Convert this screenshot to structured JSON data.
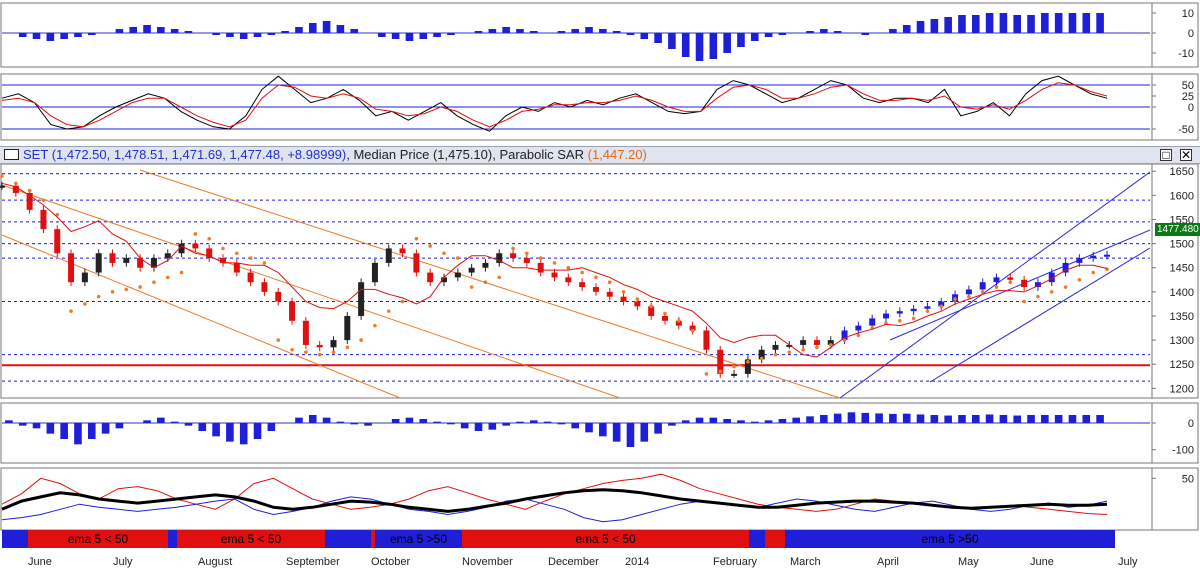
{
  "title_bar": {
    "symbol": "SET",
    "ohlc": "(1,472.50, 1,478.51, 1,471.69, 1,477.48, +8.98999)",
    "median_label": ", Median Price (1,475.10), ",
    "sar_label": "Parabolic SAR",
    "sar_value": "(1,447.20)",
    "maximize_glyph": "□",
    "close_glyph": "✕"
  },
  "last_price_tag": "1477.480",
  "colors": {
    "blue": "#1f1fd8",
    "red": "#e01010",
    "orange": "#f07a28",
    "black": "#000000",
    "green": "#0a7a18"
  },
  "chart_data": [
    {
      "type": "bar",
      "name": "top-oscillator",
      "y_ticks": [
        "10",
        "0",
        "-10"
      ],
      "ylim": [
        -17,
        15
      ],
      "values": [
        0,
        -2,
        -3,
        -4,
        -3,
        -2,
        -1,
        0,
        2,
        3,
        4,
        3,
        2,
        1,
        0,
        -1,
        -2,
        -3,
        -2,
        -1,
        1,
        3,
        5,
        6,
        4,
        2,
        0,
        -2,
        -3,
        -4,
        -3,
        -2,
        -1,
        0,
        1,
        2,
        3,
        2,
        1,
        0,
        1,
        2,
        3,
        2,
        1,
        -1,
        -3,
        -5,
        -8,
        -12,
        -14,
        -13,
        -10,
        -7,
        -4,
        -2,
        -1,
        0,
        1,
        2,
        1,
        0,
        -1,
        0,
        2,
        4,
        6,
        7,
        8,
        9,
        9,
        10,
        10,
        9,
        9,
        10,
        10,
        10,
        10,
        10
      ]
    },
    {
      "type": "line",
      "name": "stochastic",
      "y_ticks": [
        "50",
        "25",
        "0",
        "-50"
      ],
      "ylim": [
        -75,
        75
      ],
      "levels": [
        50,
        0,
        -50
      ],
      "series": [
        {
          "color": "black",
          "values": [
            20,
            30,
            10,
            -40,
            -50,
            -45,
            -20,
            0,
            15,
            30,
            20,
            -10,
            -30,
            -45,
            -50,
            -20,
            40,
            70,
            40,
            10,
            20,
            40,
            15,
            -20,
            -10,
            -30,
            -10,
            10,
            -20,
            -40,
            -55,
            -20,
            0,
            -10,
            10,
            0,
            15,
            5,
            20,
            30,
            10,
            -10,
            -15,
            -10,
            40,
            60,
            50,
            30,
            10,
            20,
            40,
            60,
            50,
            20,
            10,
            20,
            20,
            10,
            40,
            -20,
            -10,
            10,
            -20,
            30,
            60,
            70,
            50,
            30,
            20
          ]
        },
        {
          "color": "red",
          "values": [
            15,
            20,
            10,
            -20,
            -40,
            -45,
            -30,
            -10,
            10,
            20,
            20,
            0,
            -20,
            -35,
            -45,
            -30,
            20,
            50,
            45,
            25,
            20,
            30,
            20,
            -5,
            -10,
            -20,
            -15,
            0,
            -10,
            -30,
            -45,
            -30,
            -10,
            -5,
            5,
            5,
            10,
            10,
            15,
            25,
            15,
            0,
            -10,
            -10,
            20,
            45,
            50,
            40,
            20,
            20,
            30,
            45,
            50,
            30,
            15,
            15,
            20,
            15,
            25,
            0,
            -5,
            5,
            -5,
            15,
            40,
            55,
            50,
            35,
            25
          ]
        }
      ]
    },
    {
      "type": "line",
      "name": "SET price (Median Price, Parabolic SAR)",
      "y_ticks": [
        "1650",
        "1600",
        "1550",
        "1500",
        "1450",
        "1400",
        "1350",
        "1300",
        "1250",
        "1200"
      ],
      "ylim": [
        1180,
        1665
      ],
      "levels": [
        1645,
        1590,
        1545,
        1500,
        1470,
        1380,
        1270,
        1248,
        1215
      ],
      "support_level": 1248,
      "series": [
        {
          "name": "SET",
          "color": "multi",
          "values": [
            1620,
            1605,
            1570,
            1530,
            1480,
            1420,
            1440,
            1480,
            1460,
            1470,
            1450,
            1470,
            1480,
            1500,
            1490,
            1470,
            1460,
            1440,
            1420,
            1400,
            1380,
            1340,
            1290,
            1285,
            1300,
            1350,
            1420,
            1460,
            1490,
            1480,
            1440,
            1420,
            1430,
            1440,
            1450,
            1460,
            1480,
            1470,
            1460,
            1440,
            1430,
            1420,
            1410,
            1400,
            1390,
            1380,
            1370,
            1350,
            1340,
            1330,
            1320,
            1280,
            1230,
            1230,
            1260,
            1280,
            1290,
            1290,
            1300,
            1290,
            1300,
            1320,
            1330,
            1345,
            1355,
            1360,
            1365,
            1370,
            1380,
            1395,
            1405,
            1420,
            1430,
            1425,
            1410,
            1420,
            1440,
            1460,
            1470,
            1475,
            1477
          ]
        },
        {
          "name": "Parabolic SAR",
          "color": "orange",
          "values": [
            1640,
            1625,
            1610,
            1590,
            1560,
            1360,
            1375,
            1390,
            1400,
            1405,
            1410,
            1420,
            1430,
            1440,
            1520,
            1510,
            1490,
            1480,
            1470,
            1460,
            1300,
            1280,
            1275,
            1270,
            1275,
            1285,
            1300,
            1330,
            1360,
            1380,
            1510,
            1495,
            1480,
            1470,
            1410,
            1420,
            1430,
            1490,
            1480,
            1470,
            1460,
            1450,
            1440,
            1430,
            1420,
            1400,
            1385,
            1370,
            1355,
            1340,
            1320,
            1230,
            1235,
            1245,
            1255,
            1262,
            1270,
            1275,
            1280,
            1285,
            1290,
            1300,
            1310,
            1325,
            1335,
            1340,
            1345,
            1360,
            1370,
            1385,
            1390,
            1400,
            1410,
            1420,
            1380,
            1390,
            1400,
            1410,
            1425,
            1440,
            1447
          ]
        }
      ]
    },
    {
      "type": "bar",
      "name": "macd-histogram",
      "y_ticks": [
        "0",
        "-100"
      ],
      "ylim": [
        -150,
        75
      ],
      "values": [
        10,
        -10,
        -20,
        -40,
        -60,
        -80,
        -60,
        -40,
        -20,
        0,
        10,
        20,
        5,
        -10,
        -30,
        -50,
        -70,
        -80,
        -60,
        -30,
        0,
        20,
        30,
        20,
        5,
        -5,
        -10,
        0,
        15,
        20,
        15,
        5,
        -5,
        -20,
        -30,
        -25,
        -10,
        5,
        10,
        5,
        -5,
        -20,
        -35,
        -50,
        -70,
        -90,
        -70,
        -40,
        -10,
        10,
        20,
        20,
        15,
        10,
        5,
        10,
        15,
        20,
        25,
        30,
        35,
        40,
        38,
        36,
        34,
        35,
        32,
        30,
        28,
        30,
        30,
        32,
        30,
        28,
        30,
        30,
        30,
        30,
        30,
        30
      ]
    },
    {
      "type": "line",
      "name": "bottom-oscillator",
      "y_ticks": [
        "50"
      ],
      "ylim": [
        0,
        60
      ],
      "series": [
        {
          "color": "red",
          "values": [
            25,
            35,
            50,
            45,
            35,
            30,
            40,
            42,
            38,
            30,
            25,
            20,
            30,
            45,
            50,
            40,
            30,
            25,
            20,
            22,
            25,
            30,
            38,
            42,
            36,
            30,
            25,
            20,
            28,
            35,
            40,
            45,
            48,
            50,
            54,
            48,
            40,
            35,
            30,
            25,
            22,
            20,
            18,
            20,
            25,
            30,
            28,
            26,
            24,
            22,
            20,
            22,
            24,
            22,
            20,
            18,
            16,
            15
          ]
        },
        {
          "color": "blue",
          "values": [
            10,
            12,
            15,
            20,
            25,
            22,
            20,
            18,
            20,
            22,
            25,
            28,
            30,
            20,
            15,
            18,
            22,
            28,
            32,
            30,
            25,
            20,
            18,
            15,
            18,
            22,
            28,
            30,
            25,
            20,
            12,
            8,
            10,
            15,
            20,
            25,
            28,
            26,
            24,
            22,
            26,
            30,
            28,
            24,
            20,
            18,
            22,
            26,
            28,
            24,
            20,
            18,
            20,
            24,
            26,
            22,
            24,
            28
          ]
        },
        {
          "color": "black",
          "values": [
            20,
            28,
            32,
            36,
            34,
            30,
            28,
            26,
            28,
            30,
            32,
            34,
            32,
            28,
            22,
            20,
            22,
            25,
            28,
            27,
            25,
            22,
            20,
            18,
            20,
            23,
            26,
            30,
            33,
            36,
            38,
            39,
            38,
            36,
            33,
            30,
            28,
            26,
            24,
            22,
            22,
            24,
            26,
            27,
            28,
            28,
            27,
            26,
            24,
            22,
            21,
            22,
            23,
            24,
            25,
            24,
            24,
            25
          ]
        }
      ]
    }
  ],
  "signal_bar": {
    "segments": [
      {
        "color": "blue"
      },
      {
        "color": "red",
        "label": "ema 5 < 50"
      },
      {
        "color": "blue"
      },
      {
        "color": "red",
        "label": "ema 5 < 50"
      },
      {
        "color": "blue"
      },
      {
        "color": "red"
      },
      {
        "color": "blue",
        "label": "ema 5 >50"
      },
      {
        "color": "red",
        "label": "ema 5 < 50"
      },
      {
        "color": "blue"
      },
      {
        "color": "red"
      },
      {
        "color": "blue",
        "label": "ema 5 >50"
      }
    ]
  },
  "x_axis": {
    "months": [
      "June",
      "July",
      "August",
      "September",
      "October",
      "November",
      "December",
      "2014",
      "February",
      "March",
      "April",
      "May",
      "June",
      "July"
    ]
  }
}
